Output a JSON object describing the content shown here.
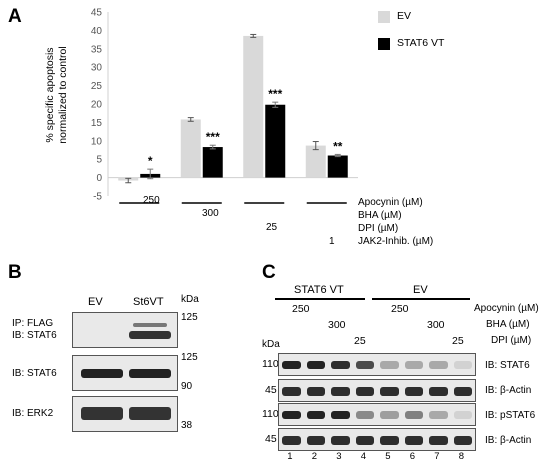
{
  "panel_a": {
    "letter": "A",
    "chart_data": {
      "type": "bar",
      "categories": [
        "Apocynin 250",
        "BHA 300",
        "DPI 25",
        "JAK2-Inhib. 1"
      ],
      "series": [
        {
          "name": "EV",
          "color": "#d9d9d9",
          "values": [
            -0.8,
            15.8,
            38.5,
            8.7
          ],
          "errors": [
            0.6,
            0.5,
            0.4,
            1.1
          ]
        },
        {
          "name": "STAT6 VT",
          "color": "#000000",
          "values": [
            1.0,
            8.3,
            19.8,
            6.0
          ],
          "errors": [
            1.3,
            0.5,
            0.7,
            0.3
          ]
        }
      ],
      "significance": [
        "*",
        "***",
        "***",
        "**"
      ],
      "ylabel_line1": "% specific apoptosis",
      "ylabel_line2": "normalized to control",
      "ylim": [
        -5,
        45
      ],
      "yticks": [
        "-5",
        "0",
        "5",
        "10",
        "15",
        "20",
        "25",
        "30",
        "35",
        "40",
        "45"
      ],
      "legend_position": "top-right"
    },
    "treatment_rows": [
      {
        "label": "Apocynin (µM)",
        "dose": "250"
      },
      {
        "label": "BHA (µM)",
        "dose": "300"
      },
      {
        "label": "DPI (µM)",
        "dose": "25"
      },
      {
        "label": "JAK2-Inhib. (µM)",
        "dose": "1"
      }
    ]
  },
  "panel_b": {
    "letter": "B",
    "lane_labels": [
      "EV",
      "St6VT"
    ],
    "kda_header": "kDa",
    "rows": [
      {
        "label_line1": "IP: FLAG",
        "label_line2": "IB: STAT6",
        "marker_top": "125",
        "marker_bottom": ""
      },
      {
        "label_line1": "IB: STAT6",
        "label_line2": "",
        "marker_top": "125",
        "marker_bottom": "90"
      },
      {
        "label_line1": "IB: ERK2",
        "label_line2": "",
        "marker_top": "",
        "marker_bottom": "38"
      }
    ]
  },
  "panel_c": {
    "letter": "C",
    "group_labels": [
      "STAT6 VT",
      "EV"
    ],
    "kda_header": "kDa",
    "treatments": [
      {
        "label": "Apocynin (µM)",
        "dose": "250"
      },
      {
        "label": "BHA (µM)",
        "dose": "300"
      },
      {
        "label": "DPI (µM)",
        "dose": "25"
      }
    ],
    "rows": [
      {
        "kda": "110",
        "label": "IB: STAT6"
      },
      {
        "kda": "45",
        "label": "IB: β-Actin"
      },
      {
        "kda": "110",
        "label": "IB: pSTAT6"
      },
      {
        "kda": "45",
        "label": "IB: β-Actin"
      }
    ],
    "lane_numbers": [
      "1",
      "2",
      "3",
      "4",
      "5",
      "6",
      "7",
      "8"
    ],
    "band_intensity": [
      [
        0.95,
        0.95,
        0.9,
        0.75,
        0.3,
        0.3,
        0.3,
        0.1
      ],
      [
        0.9,
        0.9,
        0.9,
        0.9,
        0.9,
        0.9,
        0.9,
        0.9
      ],
      [
        0.95,
        0.95,
        0.95,
        0.45,
        0.35,
        0.5,
        0.3,
        0.1
      ],
      [
        0.9,
        0.9,
        0.9,
        0.9,
        0.9,
        0.9,
        0.9,
        0.9
      ]
    ]
  }
}
